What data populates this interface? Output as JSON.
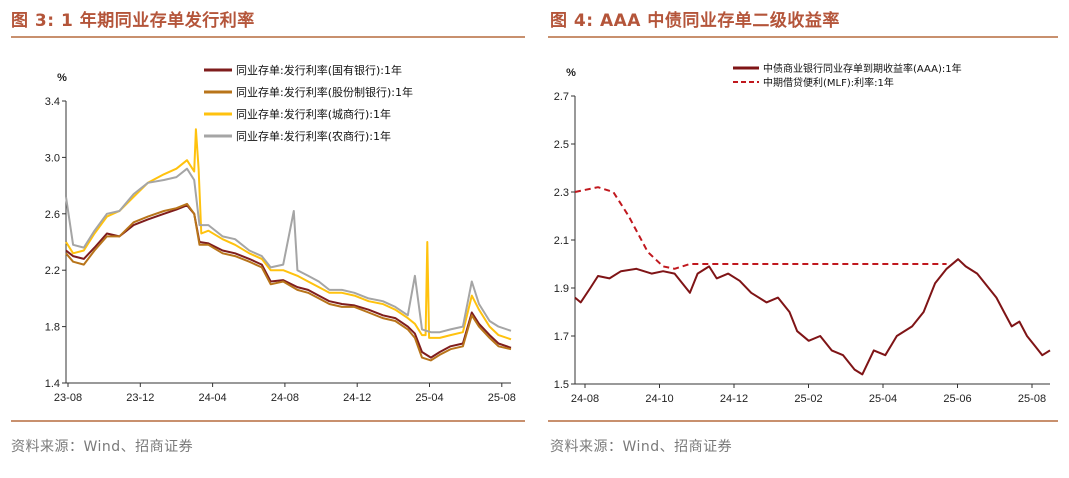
{
  "left": {
    "title": "图 3:  1 年期同业存单发行利率",
    "source": "资料来源：Wind、招商证券",
    "chart_data": {
      "type": "line",
      "unit": "%",
      "x_ticks": [
        "23-08",
        "23-12",
        "24-04",
        "24-08",
        "24-12",
        "25-04",
        "25-08"
      ],
      "y_ticks": [
        "1.4",
        "1.8",
        "2.2",
        "2.6",
        "3.0",
        "3.4"
      ],
      "ylim": [
        1.4,
        3.4
      ],
      "xlim": [
        0,
        25
      ],
      "legend_position": "top-center",
      "series": [
        {
          "name": "同业存单:发行利率(国有银行):1年",
          "color": "#7f1d1d",
          "width": 2.0,
          "points": [
            [
              0,
              2.34
            ],
            [
              0.4,
              2.3
            ],
            [
              1,
              2.28
            ],
            [
              1.6,
              2.36
            ],
            [
              2.3,
              2.46
            ],
            [
              3,
              2.44
            ],
            [
              3.8,
              2.52
            ],
            [
              4.6,
              2.56
            ],
            [
              5.5,
              2.6
            ],
            [
              6.2,
              2.63
            ],
            [
              6.8,
              2.66
            ],
            [
              7.2,
              2.6
            ],
            [
              7.5,
              2.4
            ],
            [
              8,
              2.39
            ],
            [
              8.8,
              2.34
            ],
            [
              9.5,
              2.32
            ],
            [
              10.3,
              2.28
            ],
            [
              11,
              2.24
            ],
            [
              11.5,
              2.12
            ],
            [
              12.2,
              2.13
            ],
            [
              13,
              2.08
            ],
            [
              13.6,
              2.06
            ],
            [
              14.2,
              2.02
            ],
            [
              14.8,
              1.98
            ],
            [
              15.5,
              1.96
            ],
            [
              16.2,
              1.95
            ],
            [
              17,
              1.92
            ],
            [
              17.8,
              1.88
            ],
            [
              18.5,
              1.86
            ],
            [
              19.2,
              1.8
            ],
            [
              19.6,
              1.75
            ],
            [
              20,
              1.62
            ],
            [
              20.5,
              1.58
            ],
            [
              21,
              1.62
            ],
            [
              21.6,
              1.66
            ],
            [
              22.3,
              1.68
            ],
            [
              22.8,
              1.9
            ],
            [
              23.2,
              1.82
            ],
            [
              23.8,
              1.74
            ],
            [
              24.3,
              1.68
            ],
            [
              25,
              1.65
            ]
          ]
        },
        {
          "name": "同业存单:发行利率(股份制银行):1年",
          "color": "#b8741a",
          "width": 2.0,
          "points": [
            [
              0,
              2.32
            ],
            [
              0.4,
              2.26
            ],
            [
              1,
              2.24
            ],
            [
              1.6,
              2.34
            ],
            [
              2.3,
              2.44
            ],
            [
              3,
              2.44
            ],
            [
              3.8,
              2.54
            ],
            [
              4.6,
              2.58
            ],
            [
              5.5,
              2.62
            ],
            [
              6.2,
              2.64
            ],
            [
              6.8,
              2.67
            ],
            [
              7.2,
              2.6
            ],
            [
              7.5,
              2.38
            ],
            [
              8,
              2.38
            ],
            [
              8.8,
              2.32
            ],
            [
              9.5,
              2.3
            ],
            [
              10.3,
              2.26
            ],
            [
              11,
              2.22
            ],
            [
              11.5,
              2.1
            ],
            [
              12.2,
              2.12
            ],
            [
              13,
              2.06
            ],
            [
              13.6,
              2.04
            ],
            [
              14.2,
              2.0
            ],
            [
              14.8,
              1.96
            ],
            [
              15.5,
              1.94
            ],
            [
              16.2,
              1.94
            ],
            [
              17,
              1.9
            ],
            [
              17.8,
              1.86
            ],
            [
              18.5,
              1.84
            ],
            [
              19.2,
              1.78
            ],
            [
              19.6,
              1.72
            ],
            [
              20,
              1.58
            ],
            [
              20.5,
              1.56
            ],
            [
              21,
              1.6
            ],
            [
              21.6,
              1.64
            ],
            [
              22.3,
              1.66
            ],
            [
              22.8,
              1.88
            ],
            [
              23.2,
              1.8
            ],
            [
              23.8,
              1.72
            ],
            [
              24.3,
              1.66
            ],
            [
              25,
              1.64
            ]
          ]
        },
        {
          "name": "同业存单:发行利率(城商行):1年",
          "color": "#ffc20e",
          "width": 2.0,
          "points": [
            [
              0,
              2.4
            ],
            [
              0.4,
              2.32
            ],
            [
              1,
              2.34
            ],
            [
              1.6,
              2.46
            ],
            [
              2.3,
              2.58
            ],
            [
              3,
              2.62
            ],
            [
              3.8,
              2.72
            ],
            [
              4.6,
              2.82
            ],
            [
              5.5,
              2.88
            ],
            [
              6.2,
              2.92
            ],
            [
              6.8,
              2.98
            ],
            [
              7.2,
              2.9
            ],
            [
              7.3,
              3.2
            ],
            [
              7.45,
              2.92
            ],
            [
              7.6,
              2.46
            ],
            [
              8,
              2.48
            ],
            [
              8.8,
              2.42
            ],
            [
              9.5,
              2.38
            ],
            [
              10.3,
              2.32
            ],
            [
              11,
              2.28
            ],
            [
              11.5,
              2.2
            ],
            [
              12.2,
              2.2
            ],
            [
              13,
              2.16
            ],
            [
              13.6,
              2.12
            ],
            [
              14.2,
              2.08
            ],
            [
              14.8,
              2.04
            ],
            [
              15.5,
              2.04
            ],
            [
              16.2,
              2.02
            ],
            [
              17,
              1.98
            ],
            [
              17.8,
              1.96
            ],
            [
              18.5,
              1.92
            ],
            [
              19.2,
              1.86
            ],
            [
              19.6,
              1.82
            ],
            [
              20,
              1.74
            ],
            [
              20.2,
              1.74
            ],
            [
              20.3,
              2.4
            ],
            [
              20.4,
              1.72
            ],
            [
              21,
              1.72
            ],
            [
              21.6,
              1.74
            ],
            [
              22.3,
              1.76
            ],
            [
              22.8,
              2.02
            ],
            [
              23.2,
              1.92
            ],
            [
              23.8,
              1.8
            ],
            [
              24.3,
              1.74
            ],
            [
              25,
              1.71
            ]
          ]
        },
        {
          "name": "同业存单:发行利率(农商行):1年",
          "color": "#a5a5a5",
          "width": 2.0,
          "points": [
            [
              0,
              2.72
            ],
            [
              0.4,
              2.38
            ],
            [
              1,
              2.36
            ],
            [
              1.6,
              2.48
            ],
            [
              2.3,
              2.6
            ],
            [
              3,
              2.62
            ],
            [
              3.8,
              2.74
            ],
            [
              4.6,
              2.82
            ],
            [
              5.5,
              2.84
            ],
            [
              6.2,
              2.86
            ],
            [
              6.8,
              2.92
            ],
            [
              7.2,
              2.84
            ],
            [
              7.5,
              2.52
            ],
            [
              8,
              2.52
            ],
            [
              8.8,
              2.44
            ],
            [
              9.5,
              2.42
            ],
            [
              10.3,
              2.34
            ],
            [
              11,
              2.3
            ],
            [
              11.5,
              2.22
            ],
            [
              12.2,
              2.24
            ],
            [
              12.8,
              2.62
            ],
            [
              13,
              2.2
            ],
            [
              13.6,
              2.16
            ],
            [
              14.2,
              2.12
            ],
            [
              14.8,
              2.06
            ],
            [
              15.5,
              2.06
            ],
            [
              16.2,
              2.04
            ],
            [
              17,
              2.0
            ],
            [
              17.8,
              1.98
            ],
            [
              18.5,
              1.94
            ],
            [
              19.2,
              1.88
            ],
            [
              19.6,
              2.16
            ],
            [
              20,
              1.78
            ],
            [
              20.5,
              1.76
            ],
            [
              21,
              1.76
            ],
            [
              21.6,
              1.78
            ],
            [
              22.3,
              1.8
            ],
            [
              22.8,
              2.12
            ],
            [
              23.2,
              1.96
            ],
            [
              23.8,
              1.84
            ],
            [
              24.3,
              1.8
            ],
            [
              25,
              1.77
            ]
          ]
        }
      ]
    }
  },
  "right": {
    "title": "图 4:  AAA 中债同业存单二级收益率",
    "source": "资料来源：Wind、招商证券",
    "chart_data": {
      "type": "line",
      "unit": "%",
      "x_ticks": [
        "24-08",
        "24-10",
        "24-12",
        "25-02",
        "25-04",
        "25-06",
        "25-08"
      ],
      "y_ticks": [
        "1.5",
        "1.7",
        "1.9",
        "2.1",
        "2.3",
        "2.5",
        "2.7"
      ],
      "ylim": [
        1.5,
        2.7
      ],
      "xlim": [
        0,
        12.4
      ],
      "legend_position": "top-center",
      "series": [
        {
          "name": "中债商业银行同业存单到期收益率(AAA):1年",
          "color": "#7f1416",
          "width": 2.0,
          "dash": "",
          "points": [
            [
              0,
              1.86
            ],
            [
              0.15,
              1.84
            ],
            [
              0.4,
              1.9
            ],
            [
              0.6,
              1.95
            ],
            [
              0.9,
              1.94
            ],
            [
              1.2,
              1.97
            ],
            [
              1.6,
              1.98
            ],
            [
              2,
              1.96
            ],
            [
              2.3,
              1.97
            ],
            [
              2.6,
              1.96
            ],
            [
              2.8,
              1.92
            ],
            [
              3.0,
              1.88
            ],
            [
              3.2,
              1.96
            ],
            [
              3.5,
              1.99
            ],
            [
              3.7,
              1.94
            ],
            [
              4.0,
              1.96
            ],
            [
              4.3,
              1.93
            ],
            [
              4.6,
              1.88
            ],
            [
              5.0,
              1.84
            ],
            [
              5.3,
              1.86
            ],
            [
              5.6,
              1.8
            ],
            [
              5.8,
              1.72
            ],
            [
              6.1,
              1.68
            ],
            [
              6.4,
              1.7
            ],
            [
              6.7,
              1.64
            ],
            [
              7.0,
              1.62
            ],
            [
              7.3,
              1.56
            ],
            [
              7.5,
              1.54
            ],
            [
              7.8,
              1.64
            ],
            [
              8.1,
              1.62
            ],
            [
              8.4,
              1.7
            ],
            [
              8.8,
              1.74
            ],
            [
              9.1,
              1.8
            ],
            [
              9.4,
              1.92
            ],
            [
              9.7,
              1.98
            ],
            [
              10.0,
              2.02
            ],
            [
              10.2,
              1.99
            ],
            [
              10.5,
              1.96
            ],
            [
              10.8,
              1.9
            ],
            [
              11.0,
              1.86
            ],
            [
              11.2,
              1.8
            ],
            [
              11.4,
              1.74
            ],
            [
              11.6,
              1.76
            ],
            [
              11.8,
              1.7
            ],
            [
              12.0,
              1.66
            ],
            [
              12.2,
              1.62
            ],
            [
              12.4,
              1.64
            ]
          ]
        },
        {
          "name": "中期借贷便利(MLF):利率:1年",
          "color": "#c0181e",
          "width": 2.0,
          "dash": "6,4",
          "points": [
            [
              0,
              2.3
            ],
            [
              0.6,
              2.32
            ],
            [
              1.0,
              2.3
            ],
            [
              1.4,
              2.2
            ],
            [
              1.9,
              2.05
            ],
            [
              2.3,
              1.99
            ],
            [
              2.6,
              1.98
            ],
            [
              3.0,
              2.0
            ],
            [
              5.0,
              2.0
            ],
            [
              7.0,
              2.0
            ],
            [
              9.0,
              2.0
            ],
            [
              9.7,
              2.0
            ]
          ]
        }
      ]
    }
  }
}
